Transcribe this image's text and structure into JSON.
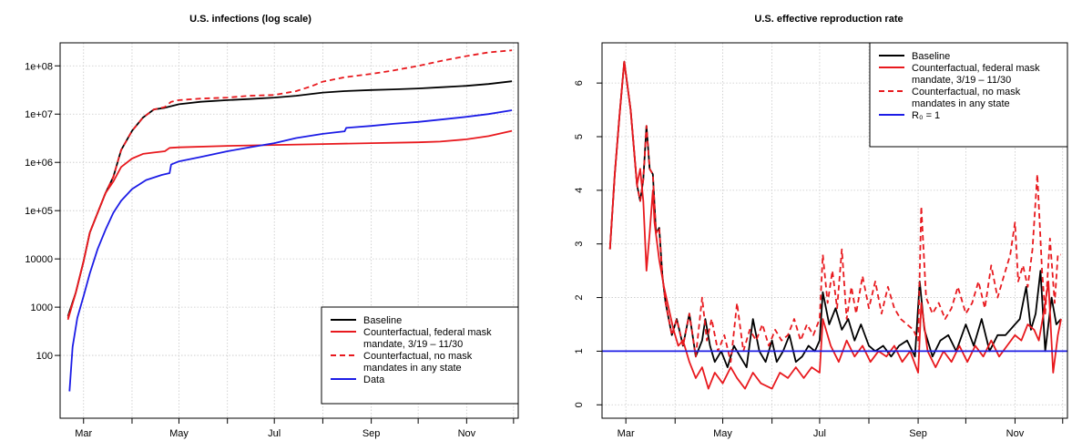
{
  "colors": {
    "baseline": "#000000",
    "federal_mask": "#e8191e",
    "no_mask": "#e8191e",
    "data": "#1c1ce6",
    "r0": "#1c1ce6",
    "grid": "#c8c8c8"
  },
  "chart_data": [
    {
      "type": "line",
      "title": "U.S. infections (log scale)",
      "xlabel": "",
      "ylabel": "",
      "log_y": true,
      "grid": true,
      "legend_position": "bottom-right",
      "xlim": [
        "2020-02-15",
        "2020-12-04"
      ],
      "ylim": [
        5,
        300000000
      ],
      "x_ticks": [
        {
          "date": "2020-03-01",
          "label": "Mar"
        },
        {
          "date": "2020-05-01",
          "label": "May"
        },
        {
          "date": "2020-07-01",
          "label": "Jul"
        },
        {
          "date": "2020-09-01",
          "label": "Sep"
        },
        {
          "date": "2020-11-01",
          "label": "Nov"
        }
      ],
      "x_minor_ticks": [
        "2020-04-01",
        "2020-06-01",
        "2020-08-01",
        "2020-10-01",
        "2020-12-01"
      ],
      "y_ticks": [
        {
          "value": 100,
          "label": "100"
        },
        {
          "value": 1000,
          "label": "1000"
        },
        {
          "value": 10000,
          "label": "10000"
        },
        {
          "value": 100000,
          "label": "1e+05"
        },
        {
          "value": 1000000,
          "label": "1e+06"
        },
        {
          "value": 10000000,
          "label": "1e+07"
        },
        {
          "value": 100000000,
          "label": "1e+08"
        }
      ],
      "series": [
        {
          "name": "Baseline",
          "style": "solid",
          "color_key": "baseline",
          "x": [
            "2020-02-20",
            "2020-02-25",
            "2020-03-01",
            "2020-03-05",
            "2020-03-10",
            "2020-03-15",
            "2020-03-20",
            "2020-03-25",
            "2020-04-01",
            "2020-04-08",
            "2020-04-15",
            "2020-04-22",
            "2020-05-01",
            "2020-05-15",
            "2020-06-01",
            "2020-06-15",
            "2020-07-01",
            "2020-07-15",
            "2020-08-01",
            "2020-08-15",
            "2020-09-01",
            "2020-09-15",
            "2020-10-01",
            "2020-10-15",
            "2020-11-01",
            "2020-11-15",
            "2020-11-30"
          ],
          "y": [
            650,
            2000,
            9000,
            35000,
            90000,
            230000,
            500000,
            1800000,
            4500000,
            8500000,
            12500000,
            13500000,
            16000000,
            18000000,
            19500000,
            20500000,
            22000000,
            24000000,
            28000000,
            30000000,
            31500000,
            32500000,
            34000000,
            36000000,
            38500000,
            42000000,
            48000000
          ]
        },
        {
          "name": "Counterfactual, federal mask mandate, 3/19 – 11/30",
          "style": "solid",
          "color_key": "federal_mask",
          "x": [
            "2020-02-20",
            "2020-02-25",
            "2020-03-01",
            "2020-03-05",
            "2020-03-10",
            "2020-03-15",
            "2020-03-20",
            "2020-03-25",
            "2020-04-01",
            "2020-04-08",
            "2020-04-15",
            "2020-04-22",
            "2020-04-25",
            "2020-05-01",
            "2020-06-01",
            "2020-07-01",
            "2020-08-01",
            "2020-09-01",
            "2020-10-01",
            "2020-10-15",
            "2020-11-01",
            "2020-11-15",
            "2020-11-30"
          ],
          "y": [
            550,
            2000,
            9000,
            35000,
            90000,
            230000,
            400000,
            800000,
            1200000,
            1500000,
            1600000,
            1700000,
            2000000,
            2050000,
            2200000,
            2300000,
            2400000,
            2500000,
            2600000,
            2700000,
            3000000,
            3500000,
            4500000
          ]
        },
        {
          "name": "Counterfactual, no mask mandates in any state",
          "style": "dashed",
          "color_key": "no_mask",
          "x": [
            "2020-02-20",
            "2020-02-25",
            "2020-03-01",
            "2020-03-05",
            "2020-03-10",
            "2020-03-15",
            "2020-03-20",
            "2020-03-25",
            "2020-04-01",
            "2020-04-08",
            "2020-04-15",
            "2020-04-22",
            "2020-04-26",
            "2020-05-01",
            "2020-05-15",
            "2020-06-01",
            "2020-06-15",
            "2020-07-01",
            "2020-07-15",
            "2020-07-25",
            "2020-08-01",
            "2020-08-15",
            "2020-09-01",
            "2020-09-15",
            "2020-10-01",
            "2020-10-15",
            "2020-11-01",
            "2020-11-15",
            "2020-11-30"
          ],
          "y": [
            600,
            2000,
            9000,
            35000,
            90000,
            230000,
            500000,
            1800000,
            4500000,
            8500000,
            12500000,
            14000000,
            18000000,
            19500000,
            21000000,
            22000000,
            24000000,
            25000000,
            30000000,
            38000000,
            47000000,
            58000000,
            68000000,
            80000000,
            100000000,
            125000000,
            160000000,
            190000000,
            210000000
          ]
        },
        {
          "name": "Data",
          "style": "solid",
          "color_key": "data",
          "x": [
            "2020-02-21",
            "2020-02-23",
            "2020-02-26",
            "2020-03-01",
            "2020-03-05",
            "2020-03-10",
            "2020-03-15",
            "2020-03-20",
            "2020-03-25",
            "2020-04-01",
            "2020-04-10",
            "2020-04-20",
            "2020-04-25",
            "2020-04-26",
            "2020-05-01",
            "2020-05-15",
            "2020-06-01",
            "2020-06-15",
            "2020-07-01",
            "2020-07-15",
            "2020-08-01",
            "2020-08-15",
            "2020-08-16",
            "2020-09-01",
            "2020-09-15",
            "2020-10-01",
            "2020-10-15",
            "2020-11-01",
            "2020-11-15",
            "2020-11-30"
          ],
          "y": [
            18,
            150,
            600,
            1700,
            5000,
            16000,
            40000,
            90000,
            160000,
            280000,
            430000,
            550000,
            600000,
            900000,
            1050000,
            1300000,
            1700000,
            2050000,
            2500000,
            3200000,
            3900000,
            4400000,
            5200000,
            5700000,
            6300000,
            6900000,
            7700000,
            8800000,
            10000000,
            12000000
          ]
        }
      ]
    },
    {
      "type": "line",
      "title": "U.S. effective reproduction rate",
      "xlabel": "",
      "ylabel": "",
      "grid": true,
      "legend_position": "top-right",
      "xlim": [
        "2020-02-15",
        "2020-12-04"
      ],
      "ylim": [
        -0.25,
        6.75
      ],
      "x_ticks": [
        {
          "date": "2020-03-01",
          "label": "Mar"
        },
        {
          "date": "2020-05-01",
          "label": "May"
        },
        {
          "date": "2020-07-01",
          "label": "Jul"
        },
        {
          "date": "2020-09-01",
          "label": "Sep"
        },
        {
          "date": "2020-11-01",
          "label": "Nov"
        }
      ],
      "x_minor_ticks": [
        "2020-04-01",
        "2020-06-01",
        "2020-08-01",
        "2020-10-01",
        "2020-12-01"
      ],
      "y_ticks": [
        {
          "value": 0,
          "label": "0"
        },
        {
          "value": 1,
          "label": "1"
        },
        {
          "value": 2,
          "label": "2"
        },
        {
          "value": 3,
          "label": "3"
        },
        {
          "value": 4,
          "label": "4"
        },
        {
          "value": 5,
          "label": "5"
        },
        {
          "value": 6,
          "label": "6"
        }
      ],
      "series": [
        {
          "name": "Baseline",
          "style": "solid",
          "color_key": "baseline",
          "x": [
            "2020-02-20",
            "2020-02-23",
            "2020-02-26",
            "2020-02-29",
            "2020-03-04",
            "2020-03-08",
            "2020-03-10",
            "2020-03-12",
            "2020-03-14",
            "2020-03-16",
            "2020-03-18",
            "2020-03-20",
            "2020-03-22",
            "2020-03-24",
            "2020-03-26",
            "2020-03-28",
            "2020-03-30",
            "2020-04-02",
            "2020-04-06",
            "2020-04-10",
            "2020-04-14",
            "2020-04-18",
            "2020-04-20",
            "2020-04-23",
            "2020-04-26",
            "2020-04-30",
            "2020-05-04",
            "2020-05-08",
            "2020-05-12",
            "2020-05-16",
            "2020-05-20",
            "2020-05-24",
            "2020-05-28",
            "2020-06-01",
            "2020-06-04",
            "2020-06-08",
            "2020-06-12",
            "2020-06-16",
            "2020-06-20",
            "2020-06-24",
            "2020-06-28",
            "2020-07-01",
            "2020-07-03",
            "2020-07-07",
            "2020-07-11",
            "2020-07-15",
            "2020-07-19",
            "2020-07-23",
            "2020-07-27",
            "2020-08-01",
            "2020-08-05",
            "2020-08-10",
            "2020-08-15",
            "2020-08-20",
            "2020-08-25",
            "2020-08-30",
            "2020-09-02",
            "2020-09-05",
            "2020-09-10",
            "2020-09-15",
            "2020-09-20",
            "2020-09-25",
            "2020-10-01",
            "2020-10-06",
            "2020-10-11",
            "2020-10-16",
            "2020-10-21",
            "2020-10-26",
            "2020-11-01",
            "2020-11-04",
            "2020-11-08",
            "2020-11-11",
            "2020-11-14",
            "2020-11-17",
            "2020-11-20",
            "2020-11-24",
            "2020-11-27",
            "2020-11-30"
          ],
          "y": [
            2.9,
            4.3,
            5.4,
            6.4,
            5.5,
            4.1,
            3.8,
            4.2,
            5.2,
            4.4,
            4.3,
            3.2,
            3.3,
            2.4,
            1.9,
            1.6,
            1.3,
            1.6,
            1.1,
            1.7,
            0.9,
            1.2,
            1.6,
            1.1,
            0.8,
            1.0,
            0.7,
            1.1,
            0.9,
            0.7,
            1.6,
            1.0,
            0.8,
            1.2,
            0.8,
            1.0,
            1.3,
            0.8,
            0.9,
            1.1,
            1.0,
            1.2,
            2.1,
            1.5,
            1.8,
            1.4,
            1.6,
            1.2,
            1.5,
            1.1,
            1.0,
            1.1,
            0.9,
            1.1,
            1.2,
            0.9,
            2.3,
            1.4,
            0.9,
            1.2,
            1.3,
            1.0,
            1.5,
            1.1,
            1.6,
            1.0,
            1.3,
            1.3,
            1.5,
            1.6,
            2.2,
            1.4,
            1.7,
            2.5,
            1.0,
            2.0,
            1.5,
            1.6
          ]
        },
        {
          "name": "Counterfactual, federal mask mandate, 3/19 – 11/30",
          "style": "solid",
          "color_key": "federal_mask",
          "x": [
            "2020-02-20",
            "2020-02-23",
            "2020-02-26",
            "2020-02-29",
            "2020-03-04",
            "2020-03-08",
            "2020-03-10",
            "2020-03-12",
            "2020-03-14",
            "2020-03-16",
            "2020-03-18",
            "2020-03-19",
            "2020-03-22",
            "2020-03-25",
            "2020-03-28",
            "2020-03-31",
            "2020-04-03",
            "2020-04-06",
            "2020-04-10",
            "2020-04-14",
            "2020-04-18",
            "2020-04-22",
            "2020-04-26",
            "2020-05-01",
            "2020-05-06",
            "2020-05-10",
            "2020-05-15",
            "2020-05-20",
            "2020-05-25",
            "2020-06-01",
            "2020-06-06",
            "2020-06-11",
            "2020-06-16",
            "2020-06-21",
            "2020-06-26",
            "2020-07-01",
            "2020-07-03",
            "2020-07-08",
            "2020-07-13",
            "2020-07-18",
            "2020-07-23",
            "2020-07-28",
            "2020-08-02",
            "2020-08-07",
            "2020-08-12",
            "2020-08-17",
            "2020-08-22",
            "2020-08-27",
            "2020-09-01",
            "2020-09-03",
            "2020-09-07",
            "2020-09-12",
            "2020-09-17",
            "2020-09-22",
            "2020-09-27",
            "2020-10-02",
            "2020-10-07",
            "2020-10-12",
            "2020-10-17",
            "2020-10-22",
            "2020-10-27",
            "2020-11-01",
            "2020-11-05",
            "2020-11-09",
            "2020-11-13",
            "2020-11-16",
            "2020-11-19",
            "2020-11-22",
            "2020-11-25",
            "2020-11-28",
            "2020-11-30"
          ],
          "y": [
            2.9,
            4.3,
            5.4,
            6.4,
            5.5,
            4.1,
            4.4,
            3.8,
            2.5,
            3.2,
            4.0,
            3.4,
            2.7,
            2.2,
            1.8,
            1.4,
            1.1,
            1.2,
            0.8,
            0.5,
            0.7,
            0.3,
            0.6,
            0.4,
            0.7,
            0.5,
            0.3,
            0.6,
            0.4,
            0.3,
            0.6,
            0.5,
            0.7,
            0.5,
            0.7,
            0.6,
            1.6,
            1.1,
            0.8,
            1.2,
            0.9,
            1.1,
            0.8,
            1.0,
            0.9,
            1.1,
            0.8,
            1.0,
            0.6,
            1.9,
            1.0,
            0.7,
            1.0,
            0.8,
            1.1,
            0.8,
            1.1,
            0.9,
            1.2,
            0.9,
            1.1,
            1.3,
            1.2,
            1.5,
            1.4,
            1.2,
            1.7,
            2.3,
            0.6,
            1.3,
            1.6
          ]
        },
        {
          "name": "Counterfactual, no mask mandates in any state",
          "style": "dashed",
          "color_key": "no_mask",
          "x": [
            "2020-02-20",
            "2020-02-23",
            "2020-02-26",
            "2020-02-29",
            "2020-03-04",
            "2020-03-08",
            "2020-03-10",
            "2020-03-12",
            "2020-03-14",
            "2020-03-16",
            "2020-03-18",
            "2020-03-20",
            "2020-03-22",
            "2020-03-24",
            "2020-03-26",
            "2020-03-28",
            "2020-03-30",
            "2020-04-02",
            "2020-04-06",
            "2020-04-10",
            "2020-04-14",
            "2020-04-18",
            "2020-04-21",
            "2020-04-24",
            "2020-04-28",
            "2020-05-02",
            "2020-05-06",
            "2020-05-10",
            "2020-05-14",
            "2020-05-18",
            "2020-05-22",
            "2020-05-26",
            "2020-05-30",
            "2020-06-03",
            "2020-06-07",
            "2020-06-11",
            "2020-06-15",
            "2020-06-19",
            "2020-06-23",
            "2020-06-27",
            "2020-07-01",
            "2020-07-03",
            "2020-07-06",
            "2020-07-09",
            "2020-07-12",
            "2020-07-15",
            "2020-07-18",
            "2020-07-21",
            "2020-07-24",
            "2020-07-28",
            "2020-08-01",
            "2020-08-05",
            "2020-08-09",
            "2020-08-13",
            "2020-08-17",
            "2020-08-21",
            "2020-08-25",
            "2020-08-29",
            "2020-09-01",
            "2020-09-03",
            "2020-09-06",
            "2020-09-10",
            "2020-09-14",
            "2020-09-18",
            "2020-09-22",
            "2020-09-26",
            "2020-10-01",
            "2020-10-05",
            "2020-10-09",
            "2020-10-13",
            "2020-10-17",
            "2020-10-21",
            "2020-10-25",
            "2020-10-29",
            "2020-11-01",
            "2020-11-03",
            "2020-11-06",
            "2020-11-09",
            "2020-11-12",
            "2020-11-15",
            "2020-11-18",
            "2020-11-20",
            "2020-11-23",
            "2020-11-26",
            "2020-11-28",
            "2020-11-30"
          ],
          "y": [
            2.9,
            4.3,
            5.4,
            6.4,
            5.5,
            4.1,
            3.8,
            4.2,
            5.2,
            4.4,
            4.3,
            3.2,
            3.3,
            2.4,
            1.9,
            1.6,
            1.3,
            1.6,
            1.1,
            1.7,
            0.9,
            2.0,
            1.2,
            1.6,
            1.0,
            1.3,
            0.8,
            1.9,
            1.0,
            1.4,
            1.2,
            1.5,
            1.1,
            1.4,
            1.2,
            1.3,
            1.6,
            1.2,
            1.5,
            1.3,
            1.6,
            2.8,
            1.9,
            2.5,
            1.8,
            2.9,
            1.6,
            2.2,
            1.7,
            2.4,
            1.8,
            2.3,
            1.7,
            2.2,
            1.8,
            1.6,
            1.5,
            1.4,
            1.2,
            3.7,
            2.0,
            1.7,
            1.9,
            1.6,
            1.8,
            2.2,
            1.7,
            1.9,
            2.3,
            1.8,
            2.6,
            2.0,
            2.4,
            2.8,
            3.4,
            2.3,
            2.6,
            2.2,
            2.9,
            4.3,
            2.5,
            1.7,
            3.1,
            1.9,
            2.8,
            2.8
          ]
        },
        {
          "name": "R₀ = 1",
          "style": "solid",
          "color_key": "r0",
          "x": [
            "2020-02-15",
            "2020-12-04"
          ],
          "y": [
            1,
            1
          ]
        }
      ]
    }
  ]
}
